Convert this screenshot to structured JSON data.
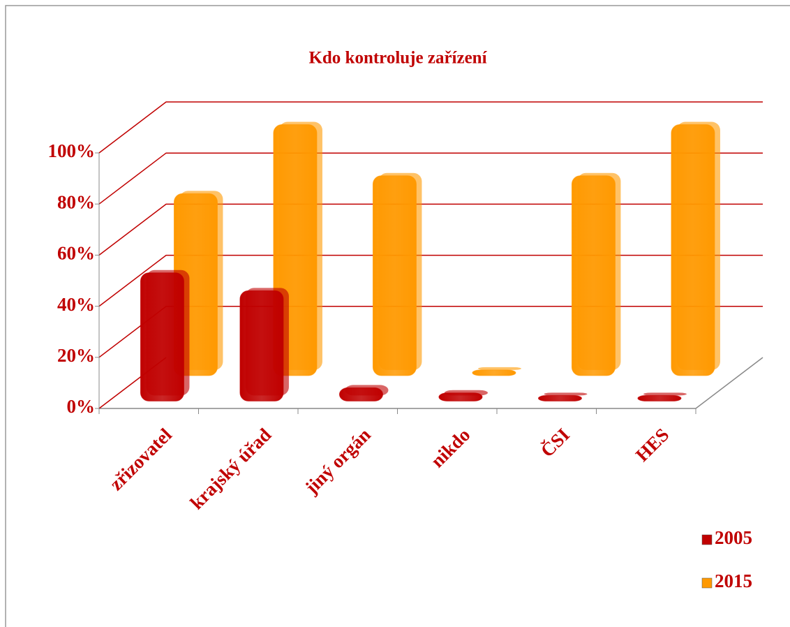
{
  "chart_data": {
    "type": "bar3d",
    "title": "Kdo kontroluje zařízení",
    "categories": [
      "zřizovatel",
      "krajský úřad",
      "jiný orgán",
      "nikdo",
      "ČSI",
      "HES"
    ],
    "series": [
      {
        "name": "2005",
        "color": "#c00000",
        "values": [
          48,
          41,
          3,
          1,
          0,
          0
        ]
      },
      {
        "name": "2015",
        "color": "#ff9900",
        "values": [
          69,
          96,
          76,
          0,
          76,
          96
        ]
      }
    ],
    "ylim": [
      0,
      100
    ],
    "yticks": [
      {
        "value": 0,
        "label": "0%"
      },
      {
        "value": 20,
        "label": "20%"
      },
      {
        "value": 40,
        "label": "40%"
      },
      {
        "value": 60,
        "label": "60%"
      },
      {
        "value": 80,
        "label": "80%"
      },
      {
        "value": 100,
        "label": "100%"
      }
    ],
    "grid": true,
    "legend": "right"
  }
}
